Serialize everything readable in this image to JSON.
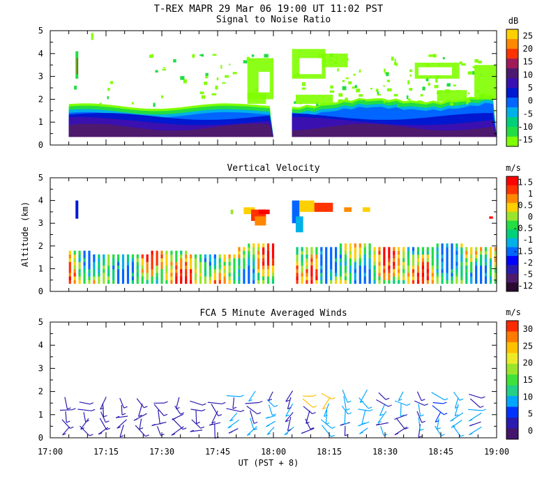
{
  "figure": {
    "title": "T-REX   MAPR 29 Mar 06   19:00 UT   11:02   PST",
    "ylabel": "Altitude (km)",
    "xlabel": "UT  (PST + 8)",
    "x_ticks": [
      "17:00",
      "17:15",
      "17:30",
      "17:45",
      "18:00",
      "18:15",
      "18:30",
      "18:45",
      "19:00"
    ],
    "y_ticks": [
      "0",
      "1",
      "2",
      "3",
      "4",
      "5"
    ],
    "colors": {
      "scale11": [
        "#7fff00",
        "#22dd44",
        "#00d07a",
        "#00b0e8",
        "#0066ff",
        "#0018d0",
        "#3a10b0",
        "#4d1a6e",
        "#a01a5a",
        "#ff3300",
        "#ff8800",
        "#ffd000"
      ],
      "wind": [
        "#44156b",
        "#2a1ab0",
        "#0033ff",
        "#00a6ff",
        "#22d088",
        "#3fe23a",
        "#9ae52b",
        "#ecea28",
        "#ffc000",
        "#ff7a00",
        "#ff2a00"
      ]
    }
  },
  "chart_data": [
    {
      "type": "heatmap",
      "title": "Signal to Noise Ratio",
      "units": "dB",
      "xlim": [
        "17:00",
        "19:00"
      ],
      "ylim": [
        0,
        5
      ],
      "colorbar_ticks": [
        "25",
        "20",
        "15",
        "10",
        "5",
        "0",
        "-5",
        "-10",
        "-15"
      ],
      "data_gaps": [
        {
          "start": "17:00",
          "end": "17:05"
        },
        {
          "start": "18:00",
          "end": "18:05"
        }
      ],
      "boundary_layer_top_km": [
        1.7,
        1.75,
        1.65,
        1.7,
        1.6,
        1.6,
        1.7,
        1.9,
        1.95,
        2.0,
        2.1,
        2.2
      ],
      "annotations": []
    },
    {
      "type": "heatmap",
      "title": "Vertical Velocity",
      "units": "m/s",
      "xlim": [
        "17:00",
        "19:00"
      ],
      "ylim": [
        0,
        5
      ],
      "colorbar_ticks": [
        "1.5",
        "1",
        "0.5",
        "0",
        "-0.5",
        "-1",
        "-1.5",
        "-2",
        "-5",
        "-12"
      ],
      "data_gaps": [
        {
          "start": "17:00",
          "end": "17:05"
        },
        {
          "start": "18:00",
          "end": "18:05"
        }
      ],
      "annotations": []
    },
    {
      "type": "wind-barbs",
      "title": "FCA 5 Minute Averaged Winds",
      "units": "m/s",
      "xlim": [
        "17:00",
        "19:00"
      ],
      "ylim": [
        0,
        5
      ],
      "colorbar_ticks": [
        "30",
        "25",
        "20",
        "15",
        "10",
        "5",
        "0"
      ],
      "sample_times": [
        "17:05",
        "17:10",
        "17:15",
        "17:20",
        "17:25",
        "17:30",
        "17:35",
        "17:40",
        "17:45",
        "17:50",
        "17:55",
        "18:00",
        "18:05",
        "18:10",
        "18:15",
        "18:20",
        "18:25",
        "18:30",
        "18:35",
        "18:40",
        "18:45",
        "18:50",
        "18:55"
      ],
      "heights_km": [
        0.3,
        0.6,
        0.9,
        1.2,
        1.5,
        1.8,
        2.1
      ],
      "annotations": []
    }
  ]
}
